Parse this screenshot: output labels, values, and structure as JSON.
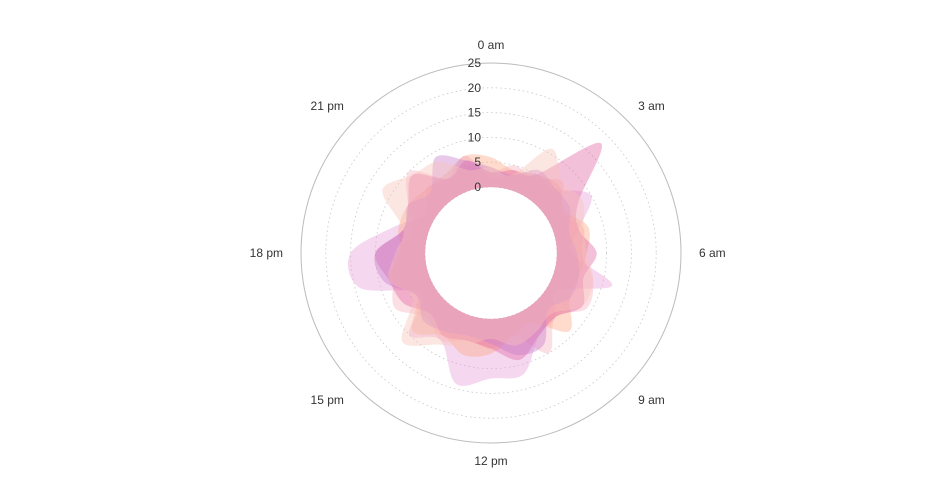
{
  "chart_data": {
    "type": "radial-area",
    "title": "",
    "angle_axis": {
      "unit": "hour",
      "range": [
        0,
        24
      ],
      "tick_labels": [
        {
          "hour": 0,
          "label": "0 am"
        },
        {
          "hour": 3,
          "label": "3 am"
        },
        {
          "hour": 6,
          "label": "6 am"
        },
        {
          "hour": 9,
          "label": "9 am"
        },
        {
          "hour": 12,
          "label": "12 pm"
        },
        {
          "hour": 15,
          "label": "15 pm"
        },
        {
          "hour": 18,
          "label": "18 pm"
        },
        {
          "hour": 21,
          "label": "21 pm"
        }
      ]
    },
    "radius_axis": {
      "range": [
        0,
        25
      ],
      "ticks": [
        0,
        5,
        10,
        15,
        20,
        25
      ],
      "grid": "dotted"
    },
    "colors": [
      "#e8a2d9",
      "#f7b1c0",
      "#fca985",
      "#e36aa5",
      "#c97fcc",
      "#f8c3bb"
    ],
    "hours": [
      0,
      1,
      2,
      3,
      4,
      5,
      6,
      7,
      8,
      9,
      10,
      11,
      12,
      13,
      14,
      15,
      16,
      17,
      18,
      19,
      20,
      21,
      22,
      23
    ],
    "series": [
      {
        "values": [
          2,
          3,
          5,
          5,
          10,
          5,
          3,
          12,
          2,
          5,
          6,
          12,
          12,
          14,
          7,
          10,
          3,
          14,
          15,
          7,
          2,
          5,
          4,
          7
        ]
      },
      {
        "values": [
          3,
          5,
          4,
          7,
          3,
          6,
          5,
          8,
          9,
          5,
          10,
          4,
          6,
          5,
          7,
          5,
          9,
          7,
          6,
          3,
          6,
          10,
          4,
          5
        ]
      },
      {
        "values": [
          6,
          4,
          5,
          6,
          4,
          7,
          6,
          5,
          5,
          9,
          3,
          4,
          7,
          8,
          6,
          9,
          4,
          8,
          5,
          6,
          6,
          5,
          5,
          7
        ]
      },
      {
        "values": [
          3,
          4,
          5,
          18,
          7,
          5,
          8,
          6,
          8,
          5,
          6,
          9,
          6,
          5,
          6,
          4,
          7,
          8,
          10,
          5,
          6,
          9,
          4,
          6
        ]
      },
      {
        "values": [
          4,
          3,
          6,
          5,
          5,
          3,
          4,
          5,
          5,
          3,
          8,
          8,
          5,
          4,
          5,
          6,
          4,
          9,
          10,
          5,
          6,
          4,
          9,
          6
        ]
      },
      {
        "values": [
          4,
          3,
          11,
          7,
          8,
          6,
          6,
          8,
          8,
          4,
          5,
          6,
          4,
          6,
          8,
          12,
          5,
          8,
          6,
          5,
          12,
          9,
          8,
          4
        ]
      }
    ]
  }
}
